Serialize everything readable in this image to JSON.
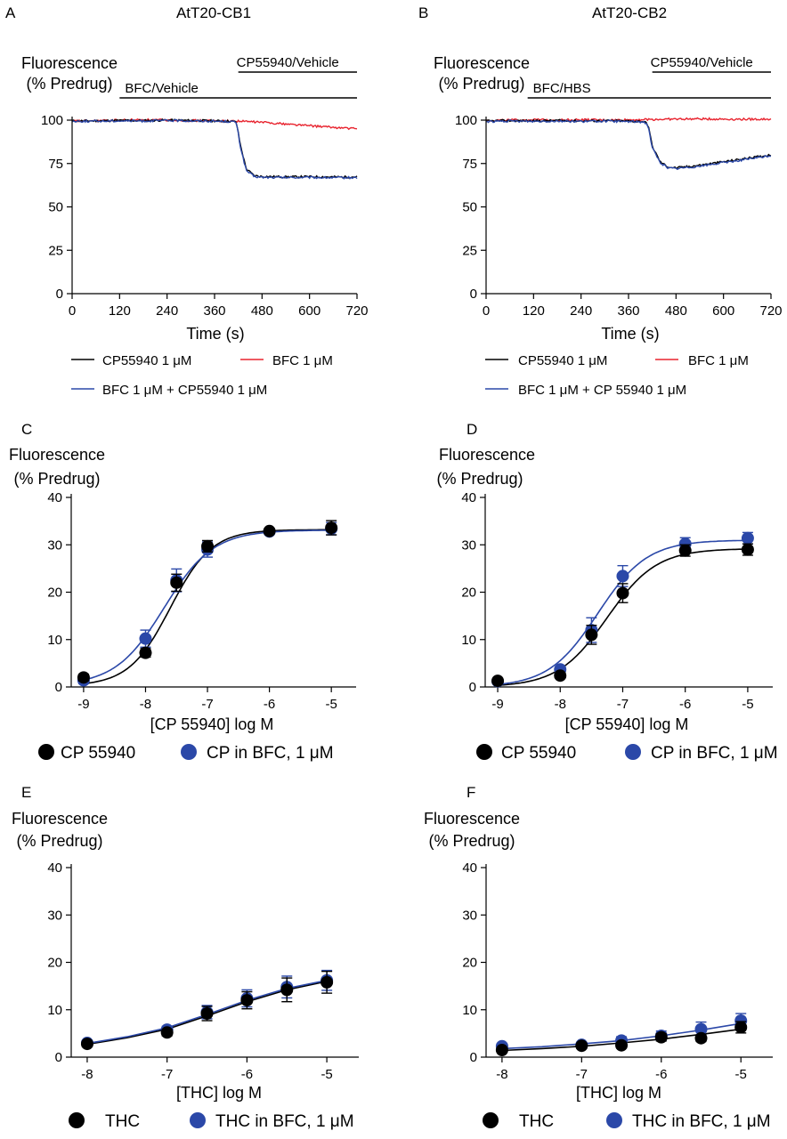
{
  "colors": {
    "black": "#000000",
    "red": "#e8242f",
    "blue": "#2b48a8"
  },
  "panels": [
    {
      "letter": "A",
      "title": "AtT20-CB1"
    },
    {
      "letter": "B",
      "title": "AtT20-CB2"
    },
    {
      "letter": "C",
      "title": ""
    },
    {
      "letter": "D",
      "title": ""
    },
    {
      "letter": "E",
      "title": ""
    },
    {
      "letter": "F",
      "title": ""
    }
  ],
  "chart_data": [
    {
      "type": "line",
      "panel": "A",
      "title": "AtT20-CB1",
      "ylabel": [
        "Fluorescence",
        "(% Predrug)"
      ],
      "xlabel": "Time (s)",
      "xlim": [
        0,
        720
      ],
      "ylim": [
        0,
        100
      ],
      "xticks": [
        0,
        120,
        240,
        360,
        480,
        600,
        720
      ],
      "yticks": [
        0,
        25,
        50,
        75,
        100
      ],
      "bars": [
        {
          "label": "CP55940/Vehicle",
          "x": [
            420,
            720
          ],
          "row": 0
        },
        {
          "label": "BFC/Vehicle",
          "x": [
            120,
            720
          ],
          "row": 1
        }
      ],
      "series": [
        {
          "name": "CP55940 1 μM",
          "color": "black",
          "x": [
            0,
            60,
            120,
            180,
            240,
            300,
            360,
            400,
            415,
            425,
            440,
            460,
            480,
            540,
            600,
            660,
            720
          ],
          "y": [
            99.5,
            99.6,
            99.8,
            99.7,
            100,
            99.8,
            99.6,
            99.4,
            99,
            86,
            72,
            68,
            67.5,
            67.3,
            67.4,
            67.2,
            67.3
          ]
        },
        {
          "name": "BFC 1 μM",
          "color": "red",
          "x": [
            0,
            60,
            120,
            180,
            240,
            300,
            360,
            420,
            480,
            540,
            600,
            660,
            720
          ],
          "y": [
            99.5,
            99.6,
            100,
            100.2,
            100,
            99.8,
            99.6,
            99.4,
            98.8,
            97.8,
            96.8,
            95.8,
            95
          ]
        },
        {
          "name": "BFC 1 μM + CP55940 1 μM",
          "color": "blue",
          "x": [
            0,
            60,
            120,
            180,
            240,
            300,
            360,
            400,
            415,
            425,
            440,
            460,
            480,
            540,
            600,
            660,
            720
          ],
          "y": [
            99.3,
            99.4,
            99.6,
            99.5,
            99.8,
            99.6,
            99.4,
            99.2,
            98.8,
            85,
            71,
            67.5,
            67,
            66.9,
            67,
            66.8,
            66.9
          ]
        }
      ],
      "legend_rows": [
        [
          "CP55940 1 μM",
          "BFC 1 μM"
        ],
        [
          "BFC 1 μM + CP55940 1 μM"
        ]
      ]
    },
    {
      "type": "line",
      "panel": "B",
      "title": "AtT20-CB2",
      "ylabel": [
        "Fluorescence",
        "(% Predrug)"
      ],
      "xlabel": "Time (s)",
      "xlim": [
        0,
        720
      ],
      "ylim": [
        0,
        100
      ],
      "xticks": [
        0,
        120,
        240,
        360,
        480,
        600,
        720
      ],
      "yticks": [
        0,
        25,
        50,
        75,
        100
      ],
      "bars": [
        {
          "label": "CP55940/Vehicle",
          "x": [
            420,
            720
          ],
          "row": 0
        },
        {
          "label": "BFC/HBS",
          "x": [
            105,
            720
          ],
          "row": 1
        }
      ],
      "series": [
        {
          "name": "CP55940 1 μM",
          "color": "black",
          "x": [
            0,
            60,
            120,
            180,
            240,
            300,
            360,
            400,
            410,
            420,
            440,
            460,
            480,
            540,
            600,
            660,
            720
          ],
          "y": [
            99.5,
            99.7,
            99.6,
            99.8,
            99.6,
            99.7,
            99.5,
            99.2,
            97,
            85,
            76,
            73,
            72.5,
            74,
            76,
            78,
            80
          ]
        },
        {
          "name": "BFC 1 μM",
          "color": "red",
          "x": [
            0,
            60,
            120,
            180,
            240,
            300,
            360,
            420,
            480,
            540,
            600,
            660,
            720
          ],
          "y": [
            99.8,
            100,
            100.2,
            100.1,
            100.3,
            100,
            100.2,
            100.4,
            100.6,
            100.7,
            100.6,
            100.5,
            100.6
          ]
        },
        {
          "name": "BFC 1 μM + CP 55940 1 μM",
          "color": "blue",
          "x": [
            0,
            60,
            120,
            180,
            240,
            300,
            360,
            400,
            410,
            420,
            440,
            460,
            480,
            540,
            600,
            660,
            720
          ],
          "y": [
            99.2,
            99.4,
            99.3,
            99.5,
            99.3,
            99.4,
            99.2,
            99,
            96.5,
            84,
            75.5,
            72.5,
            72,
            73.5,
            75.5,
            77.5,
            79.5
          ]
        }
      ],
      "legend_rows": [
        [
          "CP55940 1 μM",
          "BFC 1 μM"
        ],
        [
          "BFC 1 μM + CP 55940 1 μM"
        ]
      ]
    },
    {
      "type": "scatter",
      "panel": "C",
      "ylabel": [
        "Fluorescence",
        "(% Predrug)"
      ],
      "xlabel": "[CP 55940] log M",
      "xlim": [
        -9.2,
        -4.6
      ],
      "ylim": [
        0,
        40
      ],
      "xticks": [
        -9,
        -8,
        -7,
        -6,
        -5
      ],
      "yticks": [
        0,
        10,
        20,
        30,
        40
      ],
      "series": [
        {
          "name": "CP 55940",
          "color": "black",
          "x": [
            -9,
            -8,
            -7.5,
            -7,
            -6,
            -5
          ],
          "y": [
            2,
            7.2,
            22,
            29.7,
            32.9,
            33.6
          ],
          "err": [
            0.7,
            0.9,
            1.8,
            1.2,
            0.5,
            1.5
          ],
          "fit": {
            "bottom": 0.2,
            "top": 33.2,
            "logEC50": -7.6,
            "hill": 1.3
          }
        },
        {
          "name": "CP in BFC, 1 μM",
          "color": "blue",
          "x": [
            -9,
            -8,
            -7.5,
            -7,
            -6,
            -5
          ],
          "y": [
            1.4,
            10.2,
            22.5,
            29,
            32.8,
            33.4
          ],
          "err": [
            0.7,
            1.8,
            2.4,
            1.6,
            0.6,
            1.3
          ],
          "fit": {
            "bottom": 0.3,
            "top": 33.1,
            "logEC50": -7.7,
            "hill": 1.1
          }
        }
      ],
      "legend_rows": [
        [
          "CP 55940",
          "CP in BFC, 1 μM"
        ]
      ]
    },
    {
      "type": "scatter",
      "panel": "D",
      "ylabel": [
        "Fluorescence",
        "(% Predrug)"
      ],
      "xlabel": "[CP 55940] log M",
      "xlim": [
        -9.2,
        -4.6
      ],
      "ylim": [
        0,
        40
      ],
      "xticks": [
        -9,
        -8,
        -7,
        -6,
        -5
      ],
      "yticks": [
        0,
        10,
        20,
        30,
        40
      ],
      "series": [
        {
          "name": "CP 55940",
          "color": "black",
          "x": [
            -9,
            -8,
            -7.5,
            -7,
            -6,
            -5
          ],
          "y": [
            1.3,
            2.4,
            11,
            19.8,
            28.8,
            29
          ],
          "err": [
            0.5,
            0.5,
            2,
            2,
            1.2,
            1.2
          ],
          "fit": {
            "bottom": 0,
            "top": 29.2,
            "logEC50": -7.25,
            "hill": 1.1
          }
        },
        {
          "name": "CP in BFC, 1 μM",
          "color": "blue",
          "x": [
            -9,
            -8,
            -7.5,
            -7,
            -6,
            -5
          ],
          "y": [
            1.2,
            3.7,
            12,
            23.4,
            30.2,
            31.4
          ],
          "err": [
            0.5,
            0.6,
            2.6,
            2.2,
            1.3,
            1.2
          ],
          "fit": {
            "bottom": 0,
            "top": 31,
            "logEC50": -7.4,
            "hill": 1.1
          }
        }
      ],
      "legend_rows": [
        [
          "CP 55940",
          "CP in BFC, 1 μM"
        ]
      ]
    },
    {
      "type": "scatter",
      "panel": "E",
      "ylabel": [
        "Fluorescence",
        "(% Predrug)"
      ],
      "xlabel": "[THC] log M",
      "xlim": [
        -8.2,
        -4.6
      ],
      "ylim": [
        0,
        40
      ],
      "xticks": [
        -8,
        -7,
        -6,
        -5
      ],
      "yticks": [
        0,
        10,
        20,
        30,
        40
      ],
      "series": [
        {
          "name": "THC",
          "color": "black",
          "x": [
            -8,
            -7,
            -6.5,
            -6,
            -5.5,
            -5
          ],
          "y": [
            2.8,
            5.2,
            9.2,
            12,
            14.2,
            15.8
          ],
          "err": [
            0.6,
            0.7,
            1.5,
            1.8,
            2.5,
            2.3
          ],
          "curve": [
            [
              -8,
              2.7
            ],
            [
              -7.5,
              4.1
            ],
            [
              -7,
              5.9
            ],
            [
              -6.5,
              8.7
            ],
            [
              -6,
              11.7
            ],
            [
              -5.5,
              14.2
            ],
            [
              -5,
              16
            ]
          ]
        },
        {
          "name": "THC in BFC, 1 μM",
          "color": "blue",
          "x": [
            -8,
            -7,
            -6.5,
            -6,
            -5.5,
            -5
          ],
          "y": [
            3,
            5.8,
            9.5,
            12.4,
            14.8,
            16.2
          ],
          "err": [
            0.6,
            0.7,
            1.4,
            1.8,
            2.3,
            2.1
          ],
          "curve": [
            [
              -8,
              2.9
            ],
            [
              -7.5,
              4.3
            ],
            [
              -7,
              6.2
            ],
            [
              -6.5,
              9
            ],
            [
              -6,
              12
            ],
            [
              -5.5,
              14.5
            ],
            [
              -5,
              16.2
            ]
          ]
        }
      ],
      "legend_rows": [
        [
          "THC",
          "THC in BFC, 1 μM"
        ]
      ]
    },
    {
      "type": "scatter",
      "panel": "F",
      "ylabel": [
        "Fluorescence",
        "(% Predrug)"
      ],
      "xlabel": "[THC] log M",
      "xlim": [
        -8.2,
        -4.6
      ],
      "ylim": [
        0,
        40
      ],
      "xticks": [
        -8,
        -7,
        -6,
        -5
      ],
      "yticks": [
        0,
        10,
        20,
        30,
        40
      ],
      "series": [
        {
          "name": "THC",
          "color": "black",
          "x": [
            -8,
            -7,
            -6.5,
            -6,
            -5.5,
            -5
          ],
          "y": [
            1.5,
            2.4,
            2.5,
            4.2,
            4,
            6.3
          ],
          "err": [
            0.4,
            0.5,
            0.6,
            0.8,
            0.7,
            1.2
          ],
          "curve": [
            [
              -8,
              1.4
            ],
            [
              -7.5,
              1.8
            ],
            [
              -7,
              2.3
            ],
            [
              -6.5,
              3
            ],
            [
              -6,
              3.8
            ],
            [
              -5.5,
              4.8
            ],
            [
              -5,
              5.9
            ]
          ]
        },
        {
          "name": "THC in BFC, 1 μM",
          "color": "blue",
          "x": [
            -8,
            -7,
            -6.5,
            -6,
            -5.5,
            -5
          ],
          "y": [
            2.3,
            2.6,
            3.5,
            4.5,
            5.9,
            7.7
          ],
          "err": [
            0.5,
            0.5,
            0.8,
            1,
            1.5,
            1.5
          ],
          "curve": [
            [
              -8,
              1.8
            ],
            [
              -7.5,
              2.2
            ],
            [
              -7,
              2.8
            ],
            [
              -6.5,
              3.5
            ],
            [
              -6,
              4.5
            ],
            [
              -5.5,
              5.7
            ],
            [
              -5,
              7.1
            ]
          ]
        }
      ],
      "legend_rows": [
        [
          "THC",
          "THC in BFC, 1 μM"
        ]
      ]
    }
  ]
}
